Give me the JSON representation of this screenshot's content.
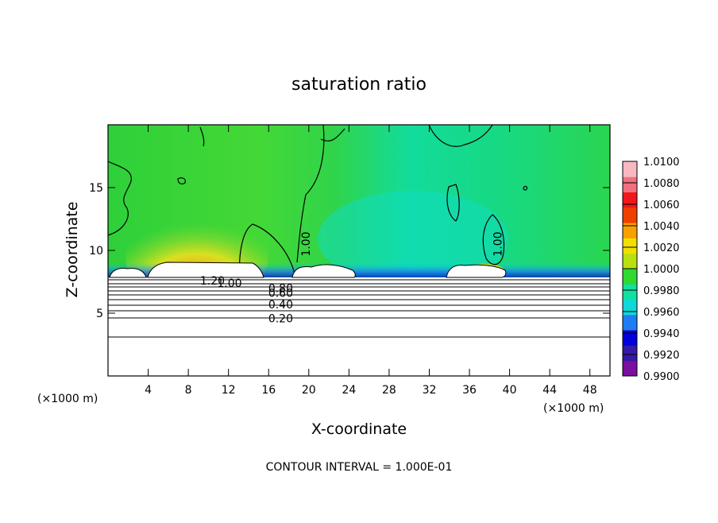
{
  "chart_data": {
    "type": "heatmap",
    "title": "saturation ratio",
    "xlabel": "X-coordinate",
    "ylabel": "Z-coordinate",
    "x_unit": "(×1000 m)",
    "z_unit": "(×1000 m)",
    "xlim": [
      0,
      50
    ],
    "ylim": [
      0,
      20
    ],
    "x_ticks": [
      4,
      8,
      12,
      16,
      20,
      24,
      28,
      32,
      36,
      40,
      44,
      48
    ],
    "y_ticks": [
      5,
      10,
      15
    ],
    "colorbar": {
      "range": [
        0.99,
        1.01
      ],
      "ticks": [
        "1.0100",
        "1.0080",
        "1.0060",
        "1.0040",
        "1.0020",
        "1.0000",
        "0.9980",
        "0.9960",
        "0.9940",
        "0.9920",
        "0.9900"
      ],
      "colors": [
        "#7a0fa0",
        "#3418a8",
        "#0000d8",
        "#1e7cf5",
        "#10d8d8",
        "#10e0a0",
        "#30d830",
        "#b8e010",
        "#f0e000",
        "#f8a000",
        "#f04000",
        "#f01818",
        "#f07080",
        "#f8b8c0"
      ]
    },
    "contour_labels": [
      {
        "text": "1.20",
        "x": 10.4,
        "z": 7.6
      },
      {
        "text": "1.00",
        "x": 12.1,
        "z": 7.4
      },
      {
        "text": "0.80",
        "x": 17.2,
        "z": 7.0
      },
      {
        "text": "0.60",
        "x": 17.2,
        "z": 6.6
      },
      {
        "text": "0.40",
        "x": 17.2,
        "z": 5.7
      },
      {
        "text": "0.20",
        "x": 17.2,
        "z": 4.6
      },
      {
        "text": "1.00",
        "x": 19.7,
        "z": 10.5
      },
      {
        "text": "1.00",
        "x": 38.8,
        "z": 10.5
      }
    ],
    "contour_interval_text": "CONTOUR INTERVAL = 1.000E-01"
  }
}
